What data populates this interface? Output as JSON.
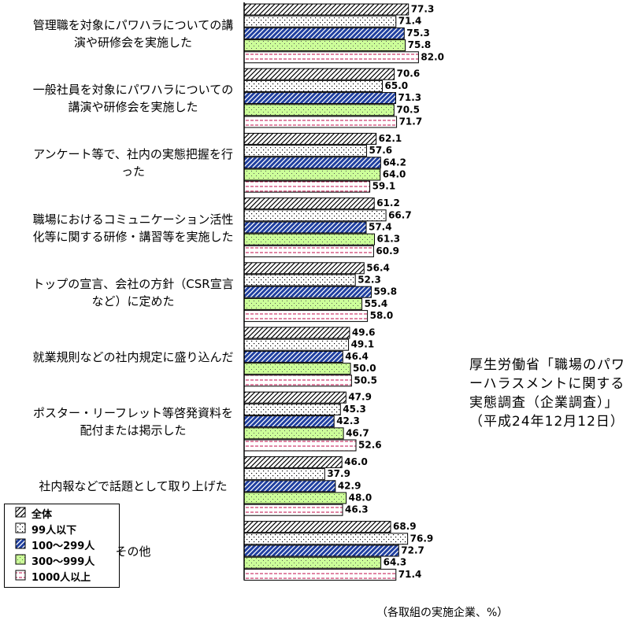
{
  "chart_data": {
    "type": "hbar",
    "categories": [
      "管理職を対象にパワハラについての講演や研修会を実施した",
      "一般社員を対象にパワハラについての講演や研修会を実施した",
      "アンケート等で、社内の実態把握を行った",
      "職場におけるコミュニケーション活性化等に関する研修・講習等を実施した",
      "トップの宣言、会社の方針（CSR宣言など）に定めた",
      "就業規則などの社内規定に盛り込んだ",
      "ポスター・リーフレット等啓発資料を配付または掲示した",
      "社内報などで話題として取り上げた",
      "その他"
    ],
    "series": [
      {
        "name": "全体",
        "color": "#000000",
        "pattern": "hatch",
        "values": [
          77.3,
          70.6,
          62.1,
          61.2,
          56.4,
          49.6,
          47.9,
          46.0,
          68.9
        ],
        "value_labels": [
          "77.3",
          "70.6",
          "62.1",
          "61.2",
          "56.4",
          "49.6",
          "47.9",
          "46.0",
          "68.9"
        ]
      },
      {
        "name": "99人以下",
        "color": "#000000",
        "pattern": "dots",
        "values": [
          71.4,
          65.0,
          57.6,
          66.7,
          52.3,
          49.1,
          45.3,
          37.9,
          76.9
        ],
        "value_labels": [
          "71.4",
          "65.0",
          "57.6",
          "66.7",
          "52.3",
          "49.1",
          "45.3",
          "37.9",
          "76.9"
        ]
      },
      {
        "name": "100～299人",
        "color": "#1f3f9f",
        "pattern": "solid-hatch",
        "values": [
          75.3,
          71.3,
          64.2,
          57.4,
          59.8,
          46.4,
          42.3,
          42.9,
          72.7
        ],
        "value_labels": [
          "75.3",
          "71.3",
          "64.2",
          "57.4",
          "59.8",
          "46.4",
          "42.3",
          "42.9",
          "72.7"
        ]
      },
      {
        "name": "300～999人",
        "color": "#ccff99",
        "pattern": "solid-dots",
        "values": [
          75.8,
          70.5,
          64.0,
          61.3,
          55.4,
          50.0,
          46.7,
          48.0,
          64.3
        ],
        "value_labels": [
          "75.8",
          "70.5",
          "64.0",
          "61.3",
          "55.4",
          "50.0",
          "46.7",
          "48.0",
          "64.3"
        ]
      },
      {
        "name": "1000人以上",
        "color": "#cc3366",
        "pattern": "dashes",
        "values": [
          82.0,
          71.7,
          59.1,
          60.9,
          58.0,
          50.5,
          52.6,
          46.3,
          71.4
        ],
        "value_labels": [
          "82.0",
          "71.7",
          "59.1",
          "60.9",
          "58.0",
          "50.5",
          "52.6",
          "46.3",
          "71.4"
        ]
      }
    ],
    "xlim": [
      0,
      100
    ],
    "source": "厚生労働省「職場のパワーハラスメントに関する実態調査（企業調査）」（平成24年12月12日）",
    "note": "（各取組の実施企業、%）"
  }
}
